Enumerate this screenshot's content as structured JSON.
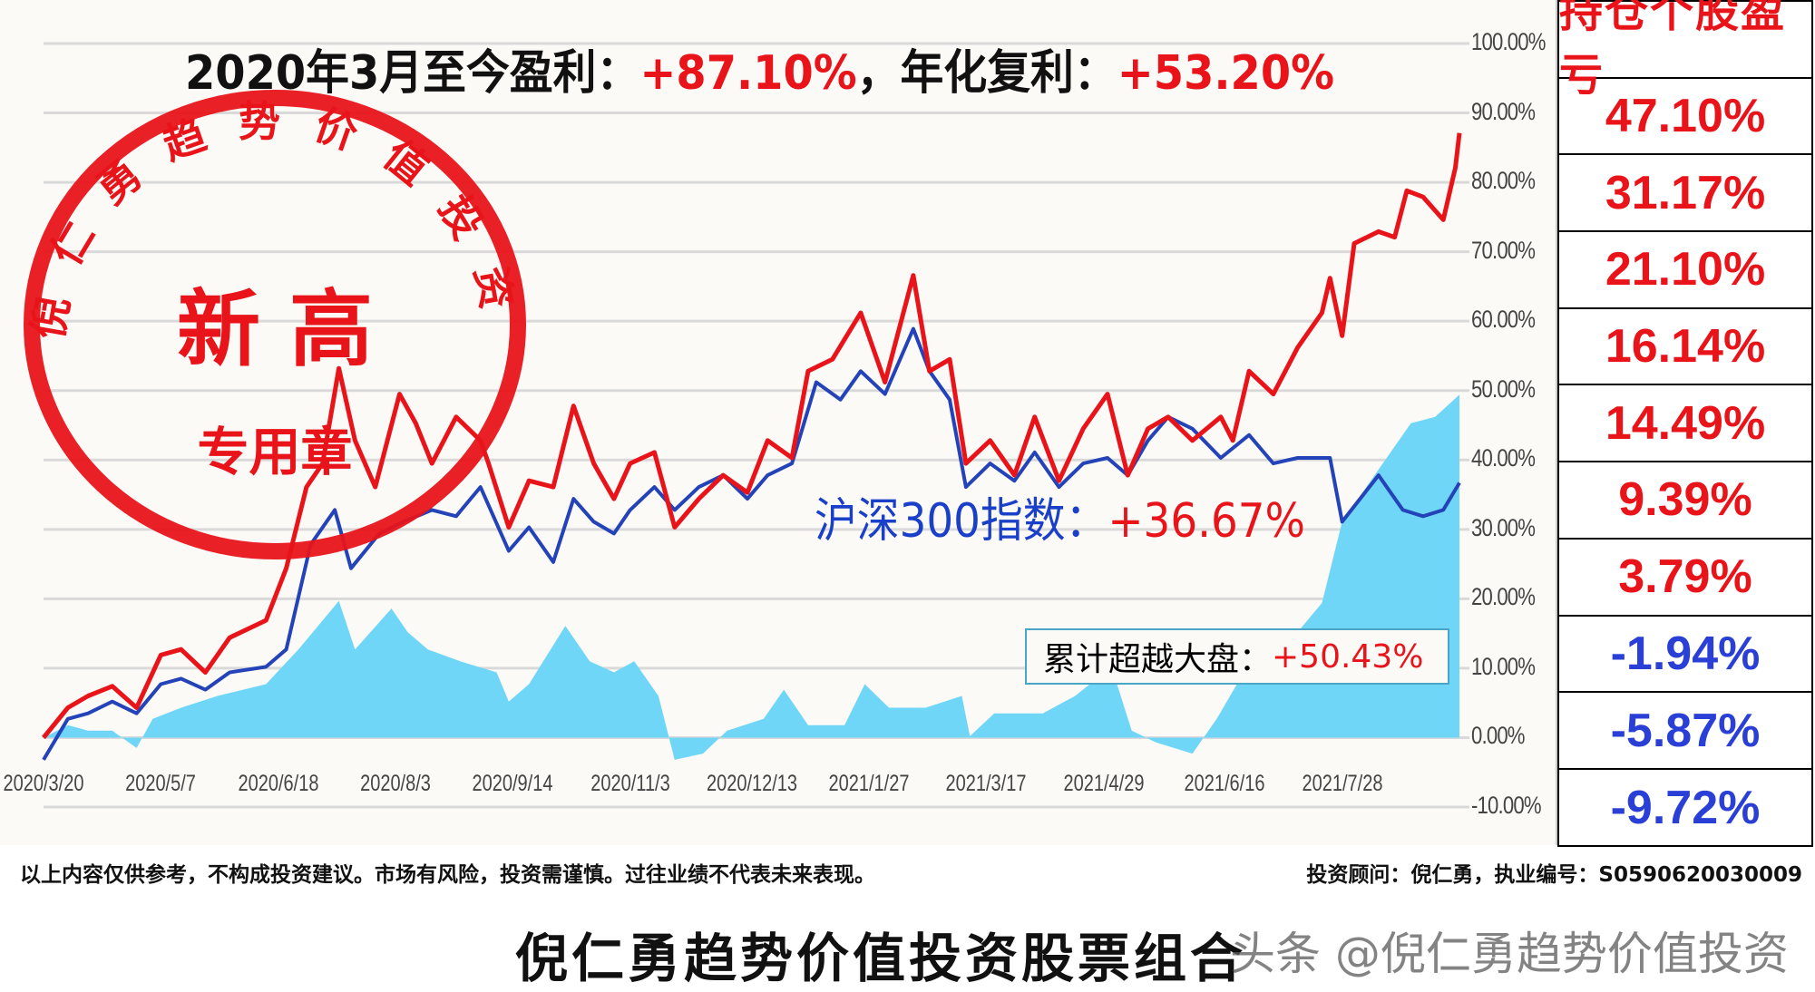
{
  "headline": {
    "prefix": "2020年3月至今盈利：",
    "profit": "+87.10%",
    "mid": "，年化复利：",
    "annualized": "+53.20%"
  },
  "stamp": {
    "arc_text": "倪仁勇趋势价值投资",
    "main": "新 高",
    "sub": "专用章",
    "color": "#e8141a"
  },
  "index_label": {
    "prefix": "沪深300指数：",
    "value": "+36.67%"
  },
  "excess_label": {
    "prefix": "累计超越大盘：",
    "value": "+50.43%"
  },
  "holdings_table": {
    "header": "持仓个股盈亏",
    "rows": [
      {
        "value": "47.10%",
        "color": "#e8141a"
      },
      {
        "value": "31.17%",
        "color": "#e8141a"
      },
      {
        "value": "21.10%",
        "color": "#e8141a"
      },
      {
        "value": "16.14%",
        "color": "#e8141a"
      },
      {
        "value": "14.49%",
        "color": "#e8141a"
      },
      {
        "value": "9.39%",
        "color": "#e8141a"
      },
      {
        "value": "3.79%",
        "color": "#e8141a"
      },
      {
        "value": "-1.94%",
        "color": "#2a3fd6"
      },
      {
        "value": "-5.87%",
        "color": "#2a3fd6"
      },
      {
        "value": "-9.72%",
        "color": "#2a3fd6"
      }
    ]
  },
  "footer": {
    "disclaimer": "以上内容仅供参考，不构成投资建议。市场有风险，投资需谨慎。过往业绩不代表未来表现。",
    "advisor": "投资顾问：倪仁勇，执业编号：S0590620030009"
  },
  "bottom_title": "倪仁勇趋势价值投资股票组合",
  "watermark": "头条 @倪仁勇趋势价值投资",
  "chart_data": {
    "type": "line",
    "xlabel": "",
    "ylabel": "",
    "x_unit": "trading days since 2020/3/20",
    "xlim": [
      0,
      350
    ],
    "ylim": [
      -10,
      100
    ],
    "yticks": [
      "100.00%",
      "90.00%",
      "80.00%",
      "70.00%",
      "60.00%",
      "50.00%",
      "40.00%",
      "30.00%",
      "20.00%",
      "10.00%",
      "0.00%",
      "-10.00%"
    ],
    "ytick_values": [
      100,
      90,
      80,
      70,
      60,
      50,
      40,
      30,
      20,
      10,
      0,
      -10
    ],
    "xticks": [
      {
        "t": 0,
        "label": "2020/3/20"
      },
      {
        "t": 29,
        "label": "2020/5/7"
      },
      {
        "t": 58,
        "label": "2020/6/18"
      },
      {
        "t": 87,
        "label": "2020/8/3"
      },
      {
        "t": 116,
        "label": "2020/9/14"
      },
      {
        "t": 145,
        "label": "2020/11/3"
      },
      {
        "t": 175,
        "label": "2020/12/13"
      },
      {
        "t": 204,
        "label": "2021/1/27"
      },
      {
        "t": 233,
        "label": "2021/3/17"
      },
      {
        "t": 262,
        "label": "2021/4/29"
      },
      {
        "t": 292,
        "label": "2021/6/16"
      },
      {
        "t": 321,
        "label": "2021/7/28"
      }
    ],
    "grid": true,
    "series": [
      {
        "name": "累计超越大盘",
        "kind": "area",
        "color": "#6fd6f7",
        "points": [
          [
            0,
            0
          ],
          [
            6,
            1.8
          ],
          [
            11,
            1
          ],
          [
            17,
            1
          ],
          [
            23,
            -1.5
          ],
          [
            27,
            2.7
          ],
          [
            34,
            4.3
          ],
          [
            43,
            6
          ],
          [
            55,
            7.7
          ],
          [
            63,
            12.7
          ],
          [
            73,
            19.7
          ],
          [
            77,
            12.7
          ],
          [
            86,
            18.6
          ],
          [
            90,
            15.2
          ],
          [
            95,
            12.7
          ],
          [
            103,
            11
          ],
          [
            112,
            9.4
          ],
          [
            115,
            5.2
          ],
          [
            120,
            7.7
          ],
          [
            129,
            16.1
          ],
          [
            135,
            11
          ],
          [
            141,
            9.4
          ],
          [
            146,
            11
          ],
          [
            152,
            6
          ],
          [
            156,
            -3.2
          ],
          [
            163,
            -2.3
          ],
          [
            169,
            1
          ],
          [
            178,
            2.7
          ],
          [
            183,
            6.9
          ],
          [
            189,
            1.8
          ],
          [
            198,
            1.8
          ],
          [
            203,
            7.7
          ],
          [
            209,
            4.3
          ],
          [
            218,
            4.3
          ],
          [
            227,
            6
          ],
          [
            229,
            0.2
          ],
          [
            235,
            3.5
          ],
          [
            247,
            3.5
          ],
          [
            255,
            6
          ],
          [
            264,
            10.2
          ],
          [
            269,
            1
          ],
          [
            275,
            -0.7
          ],
          [
            284,
            -2.3
          ],
          [
            290,
            2.7
          ],
          [
            295,
            7.7
          ],
          [
            304,
            11
          ],
          [
            316,
            19.4
          ],
          [
            321,
            31.1
          ],
          [
            327,
            36.1
          ],
          [
            338,
            45.3
          ],
          [
            344,
            46.2
          ],
          [
            350,
            49.4
          ]
        ]
      },
      {
        "name": "沪深300指数",
        "kind": "line",
        "color": "#2443b8",
        "points": [
          [
            0,
            -3.2
          ],
          [
            6,
            2.7
          ],
          [
            11,
            3.5
          ],
          [
            17,
            5.2
          ],
          [
            23,
            3.5
          ],
          [
            29,
            7.7
          ],
          [
            34,
            8.5
          ],
          [
            40,
            6.9
          ],
          [
            46,
            9.4
          ],
          [
            55,
            10.2
          ],
          [
            60,
            12.7
          ],
          [
            66,
            27.8
          ],
          [
            72,
            32.8
          ],
          [
            76,
            24.4
          ],
          [
            83,
            29.4
          ],
          [
            89,
            31.1
          ],
          [
            96,
            32.8
          ],
          [
            102,
            31.9
          ],
          [
            108,
            36.1
          ],
          [
            115,
            26.9
          ],
          [
            120,
            30.3
          ],
          [
            126,
            25.3
          ],
          [
            131,
            34.4
          ],
          [
            136,
            31.1
          ],
          [
            141,
            29.4
          ],
          [
            145,
            32.8
          ],
          [
            151,
            36.1
          ],
          [
            156,
            32.8
          ],
          [
            162,
            36.1
          ],
          [
            168,
            37.8
          ],
          [
            174,
            34.4
          ],
          [
            179,
            37.8
          ],
          [
            185,
            39.5
          ],
          [
            191,
            51.2
          ],
          [
            197,
            48.7
          ],
          [
            202,
            52.8
          ],
          [
            208,
            49.5
          ],
          [
            215,
            58.9
          ],
          [
            219,
            52.8
          ],
          [
            224,
            48.7
          ],
          [
            228,
            36.1
          ],
          [
            234,
            39.5
          ],
          [
            240,
            37
          ],
          [
            245,
            41.1
          ],
          [
            251,
            36.1
          ],
          [
            257,
            39.5
          ],
          [
            263,
            40.3
          ],
          [
            268,
            37.8
          ],
          [
            273,
            42.8
          ],
          [
            278,
            46.2
          ],
          [
            284,
            44.5
          ],
          [
            291,
            40.3
          ],
          [
            298,
            43.6
          ],
          [
            304,
            39.5
          ],
          [
            310,
            40.3
          ],
          [
            318,
            40.3
          ],
          [
            321,
            31.1
          ],
          [
            330,
            37.8
          ],
          [
            336,
            32.8
          ],
          [
            341,
            31.9
          ],
          [
            346,
            32.8
          ],
          [
            350,
            36.7
          ]
        ]
      },
      {
        "name": "组合",
        "kind": "line",
        "color": "#e8141a",
        "points": [
          [
            0,
            0
          ],
          [
            6,
            4.3
          ],
          [
            11,
            6
          ],
          [
            17,
            7.4
          ],
          [
            23,
            4.3
          ],
          [
            29,
            11.9
          ],
          [
            34,
            12.7
          ],
          [
            40,
            9.4
          ],
          [
            46,
            14.4
          ],
          [
            55,
            16.9
          ],
          [
            60,
            24.4
          ],
          [
            65,
            36.1
          ],
          [
            69,
            39.5
          ],
          [
            73,
            53.2
          ],
          [
            77,
            42.8
          ],
          [
            82,
            36.1
          ],
          [
            88,
            49.5
          ],
          [
            92,
            45.3
          ],
          [
            96,
            39.5
          ],
          [
            102,
            46.2
          ],
          [
            108,
            42.8
          ],
          [
            110,
            39.5
          ],
          [
            115,
            30.3
          ],
          [
            120,
            37
          ],
          [
            126,
            36.1
          ],
          [
            131,
            47.8
          ],
          [
            136,
            39.5
          ],
          [
            141,
            34.4
          ],
          [
            145,
            39.5
          ],
          [
            151,
            41.1
          ],
          [
            156,
            30.3
          ],
          [
            162,
            34.4
          ],
          [
            168,
            37.8
          ],
          [
            174,
            35.3
          ],
          [
            179,
            42.8
          ],
          [
            185,
            40.3
          ],
          [
            189,
            52.8
          ],
          [
            195,
            54.5
          ],
          [
            202,
            61.2
          ],
          [
            208,
            51.2
          ],
          [
            215,
            66.6
          ],
          [
            219,
            52.8
          ],
          [
            224,
            54.5
          ],
          [
            228,
            39.5
          ],
          [
            234,
            42.8
          ],
          [
            240,
            37.8
          ],
          [
            245,
            46.2
          ],
          [
            251,
            37
          ],
          [
            257,
            44.5
          ],
          [
            263,
            49.5
          ],
          [
            268,
            37.8
          ],
          [
            273,
            44.5
          ],
          [
            278,
            46.2
          ],
          [
            284,
            42.8
          ],
          [
            291,
            46.2
          ],
          [
            294,
            42.8
          ],
          [
            298,
            52.8
          ],
          [
            304,
            49.5
          ],
          [
            310,
            56.2
          ],
          [
            316,
            61.2
          ],
          [
            318,
            66.2
          ],
          [
            321,
            57.9
          ],
          [
            324,
            71.2
          ],
          [
            330,
            72.9
          ],
          [
            334,
            72.1
          ],
          [
            337,
            78.8
          ],
          [
            341,
            77.9
          ],
          [
            346,
            74.6
          ],
          [
            349,
            82.1
          ],
          [
            350,
            87.1
          ]
        ]
      }
    ]
  }
}
